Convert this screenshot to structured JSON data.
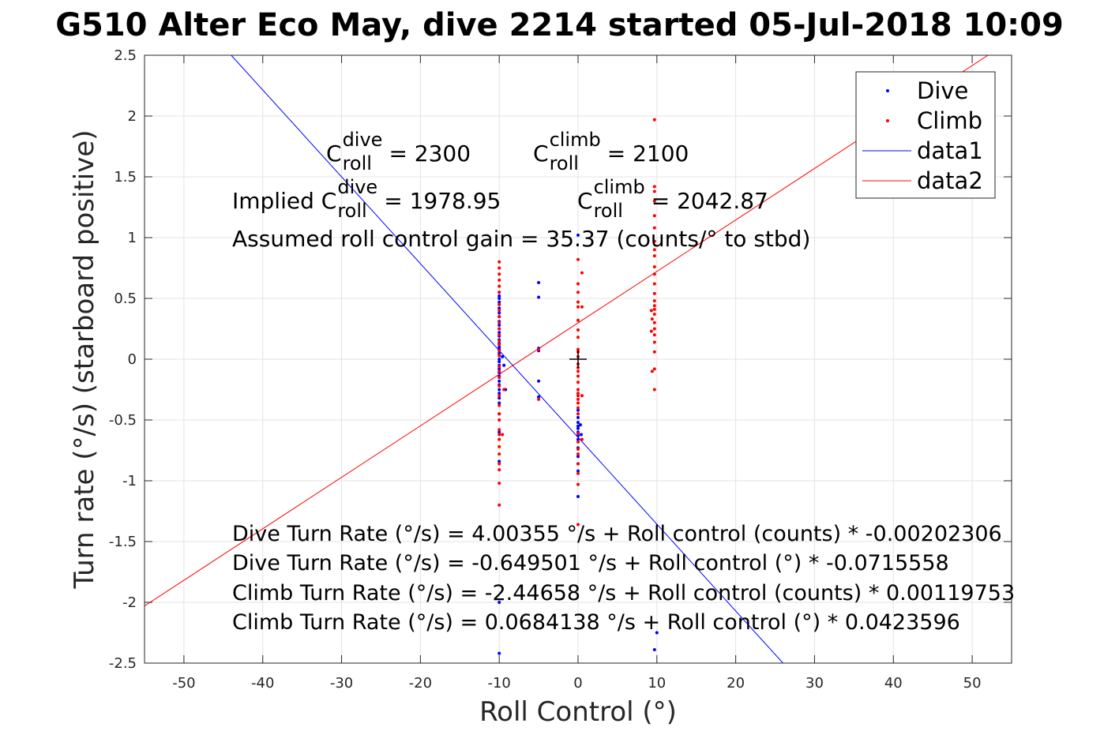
{
  "title": "G510 Alter Eco May, dive 2214 started 05-Jul-2018 10:09",
  "annotations": {
    "c_dive_prefix": "C",
    "c_dive_sup": "dive",
    "c_dive_sub": "roll",
    "c_dive_value": "= 2300",
    "c_climb_prefix": "C",
    "c_climb_sup": "climb",
    "c_climb_sub": "roll",
    "c_climb_value": "= 2100",
    "implied_prefix": "Implied C",
    "implied_dive_sup": "dive",
    "implied_dive_sub": "roll",
    "implied_dive_value": "= 1978.95",
    "implied_climb_prefix": "C",
    "implied_climb_sup": "climb",
    "implied_climb_sub": "roll",
    "implied_climb_value": "= 2042.87",
    "gain": "Assumed roll control gain = 35.37 (counts/° to stbd)",
    "eq1": "Dive Turn Rate (°/s) = 4.00355 °/s + Roll control (counts) * -0.00202306",
    "eq2": "Dive Turn Rate (°/s) = -0.649501 °/s + Roll control (°) * -0.0715558",
    "eq3": "Climb Turn Rate (°/s) = -2.44658 °/s + Roll control (counts) * 0.00119753",
    "eq4": "Climb Turn Rate (°/s) = 0.0684138 °/s + Roll control (°) * 0.0423596"
  },
  "chart_data": {
    "type": "scatter",
    "xlabel": "Roll Control (°)",
    "ylabel": "Turn rate (°/s) (starboard positive)",
    "xlim": [
      -55,
      55
    ],
    "ylim": [
      -2.5,
      2.5
    ],
    "xticks": [
      -50,
      -40,
      -30,
      -20,
      -10,
      0,
      10,
      20,
      30,
      40,
      50
    ],
    "yticks": [
      2.5,
      2,
      1.5,
      1,
      0.5,
      0,
      -0.5,
      -1,
      -1.5,
      -2,
      -2.5
    ],
    "xtick_labels": [
      "-50",
      "-40",
      "-30",
      "-20",
      "-10",
      "0",
      "10",
      "20",
      "30",
      "40",
      "50"
    ],
    "ytick_labels": [
      "2.5",
      "2",
      "1.5",
      "1",
      "0.5",
      "0",
      "-0.5",
      "-1",
      "-1.5",
      "-2",
      "-2.5"
    ],
    "grid": true,
    "legend_position": "top-right",
    "series": [
      {
        "name": "Dive",
        "kind": "points",
        "color": "#0000ff",
        "points": [
          [
            -10,
            0.55
          ],
          [
            -10,
            0.52
          ],
          [
            -10,
            0.5
          ],
          [
            -10,
            0.47
          ],
          [
            -10,
            0.45
          ],
          [
            -10,
            0.42
          ],
          [
            -10,
            0.38
          ],
          [
            -10,
            0.35
          ],
          [
            -10,
            0.31
          ],
          [
            -10,
            0.28
          ],
          [
            -10,
            0.25
          ],
          [
            -10,
            0.22
          ],
          [
            -10,
            0.19
          ],
          [
            -10,
            0.16
          ],
          [
            -10,
            0.13
          ],
          [
            -10,
            0.1
          ],
          [
            -10,
            0.08
          ],
          [
            -10,
            0.05
          ],
          [
            -10,
            0.03
          ],
          [
            -10,
            0.0
          ],
          [
            -10,
            -0.02
          ],
          [
            -10,
            -0.05
          ],
          [
            -10,
            -0.08
          ],
          [
            -10,
            -0.11
          ],
          [
            -10,
            -0.14
          ],
          [
            -10,
            -0.18
          ],
          [
            -10,
            -0.21
          ],
          [
            -10,
            -0.25
          ],
          [
            -10,
            -0.28
          ],
          [
            -10,
            -0.32
          ],
          [
            -10,
            -0.36
          ],
          [
            -10,
            -0.45
          ],
          [
            -10,
            -0.6
          ],
          [
            -10,
            -0.84
          ],
          [
            -10,
            -2.0
          ],
          [
            -10,
            -2.42
          ],
          [
            -9.6,
            0.02
          ],
          [
            -9.4,
            -0.05
          ],
          [
            -9.2,
            -0.25
          ],
          [
            -5,
            0.63
          ],
          [
            -5,
            0.51
          ],
          [
            -5,
            0.09
          ],
          [
            -5,
            0.07
          ],
          [
            -5,
            -0.18
          ],
          [
            -5,
            -0.31
          ],
          [
            0,
            1.02
          ],
          [
            0,
            -0.42
          ],
          [
            0,
            -0.48
          ],
          [
            0,
            -0.52
          ],
          [
            0,
            -0.55
          ],
          [
            0,
            -0.57
          ],
          [
            0,
            -0.6
          ],
          [
            0,
            -0.63
          ],
          [
            0,
            -0.66
          ],
          [
            0,
            -0.73
          ],
          [
            0,
            -0.8
          ],
          [
            0,
            -0.86
          ],
          [
            0,
            -0.92
          ],
          [
            0,
            -1.13
          ],
          [
            0.3,
            -0.54
          ],
          [
            0.4,
            -0.62
          ],
          [
            10,
            -2.25
          ],
          [
            9.7,
            -2.39
          ]
        ]
      },
      {
        "name": "Climb",
        "kind": "points",
        "color": "#ff0000",
        "points": [
          [
            -10,
            0.8
          ],
          [
            -10,
            0.75
          ],
          [
            -10,
            0.7
          ],
          [
            -10,
            0.65
          ],
          [
            -10,
            0.6
          ],
          [
            -10,
            0.55
          ],
          [
            -10,
            0.45
          ],
          [
            -10,
            0.4
          ],
          [
            -10,
            0.35
          ],
          [
            -10,
            0.3
          ],
          [
            -10,
            0.25
          ],
          [
            -10,
            0.2
          ],
          [
            -10,
            0.15
          ],
          [
            -10,
            0.12
          ],
          [
            -10,
            0.07
          ],
          [
            -10,
            0.03
          ],
          [
            -10,
            -0.06
          ],
          [
            -10,
            -0.1
          ],
          [
            -10,
            -0.15
          ],
          [
            -10,
            -0.22
          ],
          [
            -10,
            -0.3
          ],
          [
            -10,
            -0.38
          ],
          [
            -10,
            -0.45
          ],
          [
            -10,
            -0.5
          ],
          [
            -10,
            -0.58
          ],
          [
            -10,
            -0.62
          ],
          [
            -10,
            -0.66
          ],
          [
            -10,
            -0.72
          ],
          [
            -10,
            -0.78
          ],
          [
            -10,
            -0.86
          ],
          [
            -10,
            -0.91
          ],
          [
            -10,
            -1.02
          ],
          [
            -10,
            -1.2
          ],
          [
            -9.6,
            -0.62
          ],
          [
            -9.4,
            -0.25
          ],
          [
            -5,
            -0.33
          ],
          [
            -5,
            0.08
          ],
          [
            0,
            0.82
          ],
          [
            0,
            0.62
          ],
          [
            0,
            0.55
          ],
          [
            0,
            0.47
          ],
          [
            0,
            0.43
          ],
          [
            0,
            0.32
          ],
          [
            0,
            0.24
          ],
          [
            0,
            0.18
          ],
          [
            0,
            0.08
          ],
          [
            0,
            0.06
          ],
          [
            0,
            0.02
          ],
          [
            0,
            -0.04
          ],
          [
            0,
            -0.07
          ],
          [
            0,
            -0.1
          ],
          [
            0,
            -0.14
          ],
          [
            0,
            -0.19
          ],
          [
            0,
            -0.25
          ],
          [
            0,
            -0.28
          ],
          [
            0,
            -0.3
          ],
          [
            0,
            -0.33
          ],
          [
            0,
            -0.36
          ],
          [
            0,
            -0.4
          ],
          [
            0,
            -0.45
          ],
          [
            0,
            -0.61
          ],
          [
            0,
            -0.68
          ],
          [
            0,
            -0.74
          ],
          [
            0,
            -0.78
          ],
          [
            0,
            -0.86
          ],
          [
            0,
            -0.94
          ],
          [
            0,
            -1.03
          ],
          [
            0,
            -1.36
          ],
          [
            0.5,
            0.71
          ],
          [
            0.5,
            0.43
          ],
          [
            0.5,
            -0.3
          ],
          [
            0.5,
            -0.66
          ],
          [
            9.7,
            1.97
          ],
          [
            9.7,
            1.42
          ],
          [
            9.7,
            1.38
          ],
          [
            9.7,
            1.3
          ],
          [
            9.7,
            1.18
          ],
          [
            9.7,
            1.08
          ],
          [
            9.7,
            0.97
          ],
          [
            9.7,
            0.9
          ],
          [
            9.7,
            0.85
          ],
          [
            9.7,
            0.76
          ],
          [
            9.7,
            0.7
          ],
          [
            9.7,
            0.62
          ],
          [
            9.7,
            0.54
          ],
          [
            9.7,
            0.48
          ],
          [
            9.7,
            0.44
          ],
          [
            9.7,
            0.41
          ],
          [
            9.7,
            0.37
          ],
          [
            9.7,
            0.3
          ],
          [
            9.7,
            0.25
          ],
          [
            9.7,
            0.2
          ],
          [
            9.7,
            0.14
          ],
          [
            9.7,
            0.06
          ],
          [
            9.7,
            -0.08
          ],
          [
            9.7,
            -0.25
          ],
          [
            9.3,
            0.4
          ],
          [
            9.3,
            0.23
          ],
          [
            9.4,
            0.33
          ],
          [
            9.4,
            -0.1
          ]
        ]
      },
      {
        "name": "data1",
        "kind": "line",
        "color": "#0000ff",
        "points": [
          [
            -44,
            2.5
          ],
          [
            26,
            -2.5
          ]
        ]
      },
      {
        "name": "data2",
        "kind": "line",
        "color": "#ff0000",
        "points": [
          [
            -55,
            -2.03
          ],
          [
            52,
            2.5
          ]
        ]
      }
    ],
    "crosshair": [
      0,
      0
    ]
  }
}
